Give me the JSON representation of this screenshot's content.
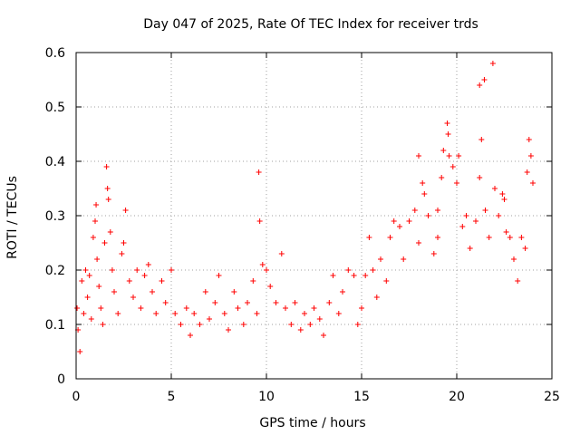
{
  "chart_data": {
    "type": "scatter",
    "title": "Day 047 of 2025, Rate Of TEC Index for receiver trds",
    "xlabel": "GPS time / hours",
    "ylabel": "ROTI / TECUs",
    "xlim": [
      0,
      25
    ],
    "ylim": [
      0,
      0.6
    ],
    "xticks": [
      "0",
      "5",
      "10",
      "15",
      "20",
      "25"
    ],
    "yticks": [
      "0",
      "0.1",
      "0.2",
      "0.3",
      "0.4",
      "0.5",
      "0.6"
    ],
    "grid": true,
    "marker": "plus",
    "color": "#ff0000",
    "series": [
      {
        "points": [
          [
            0.05,
            0.13
          ],
          [
            0.1,
            0.09
          ],
          [
            0.2,
            0.05
          ],
          [
            0.3,
            0.18
          ],
          [
            0.4,
            0.12
          ],
          [
            0.5,
            0.2
          ],
          [
            0.6,
            0.15
          ],
          [
            0.7,
            0.19
          ],
          [
            0.8,
            0.11
          ],
          [
            0.9,
            0.26
          ],
          [
            1.0,
            0.29
          ],
          [
            1.05,
            0.32
          ],
          [
            1.1,
            0.22
          ],
          [
            1.2,
            0.17
          ],
          [
            1.3,
            0.13
          ],
          [
            1.4,
            0.1
          ],
          [
            1.5,
            0.25
          ],
          [
            1.6,
            0.39
          ],
          [
            1.65,
            0.35
          ],
          [
            1.7,
            0.33
          ],
          [
            1.8,
            0.27
          ],
          [
            1.9,
            0.2
          ],
          [
            2.0,
            0.16
          ],
          [
            2.2,
            0.12
          ],
          [
            2.4,
            0.23
          ],
          [
            2.5,
            0.25
          ],
          [
            2.6,
            0.31
          ],
          [
            2.8,
            0.18
          ],
          [
            3.0,
            0.15
          ],
          [
            3.2,
            0.2
          ],
          [
            3.4,
            0.13
          ],
          [
            3.6,
            0.19
          ],
          [
            3.8,
            0.21
          ],
          [
            4.0,
            0.16
          ],
          [
            4.2,
            0.12
          ],
          [
            4.5,
            0.18
          ],
          [
            4.7,
            0.14
          ],
          [
            5.0,
            0.2
          ],
          [
            5.2,
            0.12
          ],
          [
            5.5,
            0.1
          ],
          [
            5.8,
            0.13
          ],
          [
            6.0,
            0.08
          ],
          [
            6.2,
            0.12
          ],
          [
            6.5,
            0.1
          ],
          [
            6.8,
            0.16
          ],
          [
            7.0,
            0.11
          ],
          [
            7.3,
            0.14
          ],
          [
            7.5,
            0.19
          ],
          [
            7.8,
            0.12
          ],
          [
            8.0,
            0.09
          ],
          [
            8.3,
            0.16
          ],
          [
            8.5,
            0.13
          ],
          [
            8.8,
            0.1
          ],
          [
            9.0,
            0.14
          ],
          [
            9.3,
            0.18
          ],
          [
            9.5,
            0.12
          ],
          [
            9.6,
            0.38
          ],
          [
            9.65,
            0.29
          ],
          [
            9.8,
            0.21
          ],
          [
            10.0,
            0.2
          ],
          [
            10.2,
            0.17
          ],
          [
            10.5,
            0.14
          ],
          [
            10.8,
            0.23
          ],
          [
            11.0,
            0.13
          ],
          [
            11.3,
            0.1
          ],
          [
            11.5,
            0.14
          ],
          [
            11.8,
            0.09
          ],
          [
            12.0,
            0.12
          ],
          [
            12.3,
            0.1
          ],
          [
            12.5,
            0.13
          ],
          [
            12.8,
            0.11
          ],
          [
            13.0,
            0.08
          ],
          [
            13.3,
            0.14
          ],
          [
            13.5,
            0.19
          ],
          [
            13.8,
            0.12
          ],
          [
            14.0,
            0.16
          ],
          [
            14.3,
            0.2
          ],
          [
            14.6,
            0.19
          ],
          [
            14.8,
            0.1
          ],
          [
            15.0,
            0.13
          ],
          [
            15.2,
            0.19
          ],
          [
            15.4,
            0.26
          ],
          [
            15.6,
            0.2
          ],
          [
            15.8,
            0.15
          ],
          [
            16.0,
            0.22
          ],
          [
            16.3,
            0.18
          ],
          [
            16.5,
            0.26
          ],
          [
            16.7,
            0.29
          ],
          [
            17.0,
            0.28
          ],
          [
            17.2,
            0.22
          ],
          [
            17.5,
            0.29
          ],
          [
            17.8,
            0.31
          ],
          [
            18.0,
            0.25
          ],
          [
            18.2,
            0.36
          ],
          [
            18.3,
            0.34
          ],
          [
            18.5,
            0.3
          ],
          [
            18.8,
            0.23
          ],
          [
            19.0,
            0.26
          ],
          [
            19.2,
            0.37
          ],
          [
            19.3,
            0.42
          ],
          [
            19.5,
            0.47
          ],
          [
            19.55,
            0.45
          ],
          [
            19.6,
            0.41
          ],
          [
            19.8,
            0.39
          ],
          [
            20.0,
            0.36
          ],
          [
            20.3,
            0.28
          ],
          [
            20.5,
            0.3
          ],
          [
            20.7,
            0.24
          ],
          [
            21.0,
            0.29
          ],
          [
            21.2,
            0.37
          ],
          [
            21.3,
            0.44
          ],
          [
            21.5,
            0.31
          ],
          [
            21.7,
            0.26
          ],
          [
            21.9,
            0.58
          ],
          [
            22.0,
            0.35
          ],
          [
            22.2,
            0.3
          ],
          [
            22.4,
            0.34
          ],
          [
            22.6,
            0.27
          ],
          [
            22.8,
            0.26
          ],
          [
            23.0,
            0.22
          ],
          [
            23.2,
            0.18
          ],
          [
            23.4,
            0.26
          ],
          [
            23.6,
            0.24
          ],
          [
            23.7,
            0.38
          ],
          [
            23.8,
            0.44
          ],
          [
            23.9,
            0.41
          ],
          [
            24.0,
            0.36
          ],
          [
            21.2,
            0.54
          ],
          [
            21.45,
            0.55
          ],
          [
            22.5,
            0.33
          ],
          [
            20.1,
            0.41
          ],
          [
            19.0,
            0.31
          ],
          [
            18.0,
            0.41
          ]
        ]
      }
    ]
  }
}
